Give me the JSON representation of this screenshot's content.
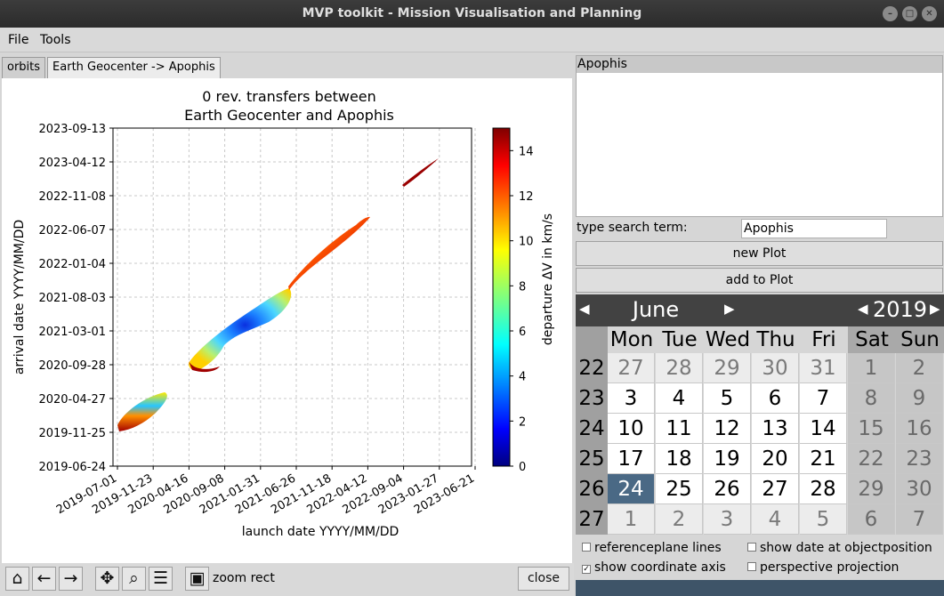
{
  "window": {
    "title": "MVP toolkit - Mission Visualisation and Planning"
  },
  "menu": {
    "file": "File",
    "tools": "Tools"
  },
  "tabs": [
    {
      "label": "orbits"
    },
    {
      "label": "Earth Geocenter -> Apophis"
    }
  ],
  "plot": {
    "title_line1": "0 rev. transfers between",
    "title_line2": "Earth Geocenter and Apophis",
    "xlabel": "launch date YYYY/MM/DD",
    "ylabel": "arrival date YYYY/MM/DD",
    "colorbar_label": "departure ΔV in km/s",
    "colorbar_ticks": [
      "0",
      "2",
      "4",
      "6",
      "8",
      "10",
      "12",
      "14"
    ]
  },
  "chart_data": {
    "type": "heatmap",
    "title": "0 rev. transfers between Earth Geocenter and Apophis",
    "xlabel": "launch date YYYY/MM/DD",
    "ylabel": "arrival date YYYY/MM/DD",
    "x_ticks": [
      "2019-07-01",
      "2019-11-23",
      "2020-04-16",
      "2020-09-08",
      "2021-01-31",
      "2021-06-26",
      "2021-11-18",
      "2022-04-12",
      "2022-09-04",
      "2023-01-27",
      "2023-06-21"
    ],
    "y_ticks": [
      "2019-06-24",
      "2019-11-25",
      "2020-04-27",
      "2020-09-28",
      "2021-03-01",
      "2021-08-03",
      "2022-01-04",
      "2022-06-07",
      "2022-11-08",
      "2023-04-12",
      "2023-09-13"
    ],
    "colorbar": {
      "label": "departure ΔV in km/s",
      "range": [
        0,
        15
      ],
      "colormap": "jet"
    },
    "grid": true,
    "regions": [
      {
        "launch_range": [
          "2019-08-01",
          "2020-03-15"
        ],
        "arrival_range": [
          "2019-12-01",
          "2020-04-05"
        ],
        "min_dv": 5,
        "max_dv": 15
      },
      {
        "launch_range": [
          "2020-08-20",
          "2021-08-10"
        ],
        "arrival_range": [
          "2020-09-01",
          "2021-09-10"
        ],
        "min_dv": 2,
        "max_dv": 15
      },
      {
        "launch_range": [
          "2021-06-20",
          "2022-05-01"
        ],
        "arrival_range": [
          "2021-09-01",
          "2022-07-10"
        ],
        "min_dv": 10,
        "max_dv": 15
      },
      {
        "launch_range": [
          "2022-11-15",
          "2023-03-20"
        ],
        "arrival_range": [
          "2023-01-20",
          "2023-04-20"
        ],
        "min_dv": 14,
        "max_dv": 15
      }
    ]
  },
  "toolbar": {
    "zoom_mode": "zoom rect",
    "close_label": "close"
  },
  "sidebar": {
    "selected_item": "Apophis",
    "search_label": "type search term:",
    "search_value": "Apophis",
    "new_plot": "new Plot",
    "add_plot": "add to Plot"
  },
  "calendar": {
    "month": "June",
    "year": "2019",
    "weekdays": [
      "Mon",
      "Tue",
      "Wed",
      "Thu",
      "Fri",
      "Sat",
      "Sun"
    ],
    "weeks": [
      {
        "num": "22",
        "days": [
          "27",
          "28",
          "29",
          "30",
          "31",
          "1",
          "2"
        ]
      },
      {
        "num": "23",
        "days": [
          "3",
          "4",
          "5",
          "6",
          "7",
          "8",
          "9"
        ]
      },
      {
        "num": "24",
        "days": [
          "10",
          "11",
          "12",
          "13",
          "14",
          "15",
          "16"
        ]
      },
      {
        "num": "25",
        "days": [
          "17",
          "18",
          "19",
          "20",
          "21",
          "22",
          "23"
        ]
      },
      {
        "num": "26",
        "days": [
          "24",
          "25",
          "26",
          "27",
          "28",
          "29",
          "30"
        ]
      },
      {
        "num": "27",
        "days": [
          "1",
          "2",
          "3",
          "4",
          "5",
          "6",
          "7"
        ]
      }
    ],
    "selected_day": "24"
  },
  "options": {
    "referenceplane_lines": {
      "label": "referenceplane lines",
      "checked": false
    },
    "show_date": {
      "label": "show date at objectposition",
      "checked": false
    },
    "show_axis": {
      "label": "show coordinate axis",
      "checked": true
    },
    "perspective": {
      "label": "perspective projection",
      "checked": false
    }
  }
}
